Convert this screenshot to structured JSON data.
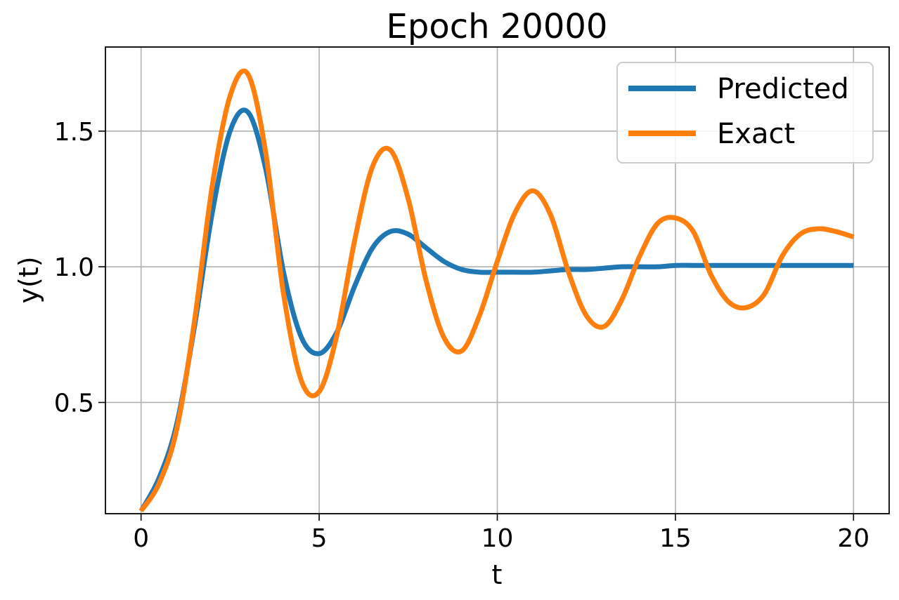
{
  "chart_data": {
    "type": "line",
    "title": "Epoch 20000",
    "xlabel": "t",
    "ylabel": "y(t)",
    "xlim": [
      -1,
      21
    ],
    "ylim": [
      0.09,
      1.81
    ],
    "xticks": [
      0,
      5,
      10,
      15,
      20
    ],
    "xtick_labels": [
      "0",
      "5",
      "10",
      "15",
      "20"
    ],
    "yticks": [
      0.5,
      1.0,
      1.5
    ],
    "ytick_labels": [
      "0.5",
      "1.0",
      "1.5"
    ],
    "grid": true,
    "legend_position": "top-right",
    "series": [
      {
        "name": "Predicted",
        "color": "#1f77b4",
        "x": [
          0,
          0.5,
          1,
          1.5,
          2,
          2.5,
          3,
          3.5,
          4,
          4.5,
          5,
          5.5,
          6,
          6.5,
          7,
          7.5,
          8,
          8.5,
          9,
          9.5,
          10,
          10.5,
          11,
          11.5,
          12,
          12.5,
          13,
          13.5,
          14,
          14.5,
          15,
          15.5,
          16,
          16.5,
          17,
          17.5,
          18,
          18.5,
          19,
          19.5,
          20
        ],
        "y": [
          0.1,
          0.22,
          0.42,
          0.78,
          1.2,
          1.5,
          1.57,
          1.36,
          0.98,
          0.74,
          0.68,
          0.76,
          0.93,
          1.07,
          1.13,
          1.12,
          1.07,
          1.02,
          0.99,
          0.98,
          0.98,
          0.98,
          0.98,
          0.985,
          0.99,
          0.99,
          0.995,
          1.0,
          1.0,
          1.0,
          1.005,
          1.005,
          1.005,
          1.005,
          1.005,
          1.005,
          1.005,
          1.005,
          1.005,
          1.005,
          1.005
        ]
      },
      {
        "name": "Exact",
        "color": "#ff7f0e",
        "x": [
          0,
          0.5,
          1,
          1.5,
          2,
          2.5,
          3,
          3.5,
          4,
          4.5,
          5,
          5.5,
          6,
          6.5,
          7,
          7.5,
          8,
          8.5,
          9,
          9.5,
          10,
          10.5,
          11,
          11.5,
          12,
          12.5,
          13,
          13.5,
          14,
          14.5,
          15,
          15.5,
          16,
          16.5,
          17,
          17.5,
          18,
          18.5,
          19,
          19.5,
          20
        ],
        "y": [
          0.1,
          0.2,
          0.4,
          0.8,
          1.3,
          1.63,
          1.71,
          1.42,
          0.9,
          0.58,
          0.54,
          0.75,
          1.1,
          1.37,
          1.43,
          1.25,
          0.95,
          0.74,
          0.69,
          0.82,
          1.02,
          1.2,
          1.28,
          1.19,
          0.98,
          0.82,
          0.78,
          0.88,
          1.04,
          1.16,
          1.18,
          1.13,
          0.97,
          0.87,
          0.85,
          0.9,
          1.04,
          1.12,
          1.14,
          1.13,
          1.11
        ]
      }
    ]
  }
}
